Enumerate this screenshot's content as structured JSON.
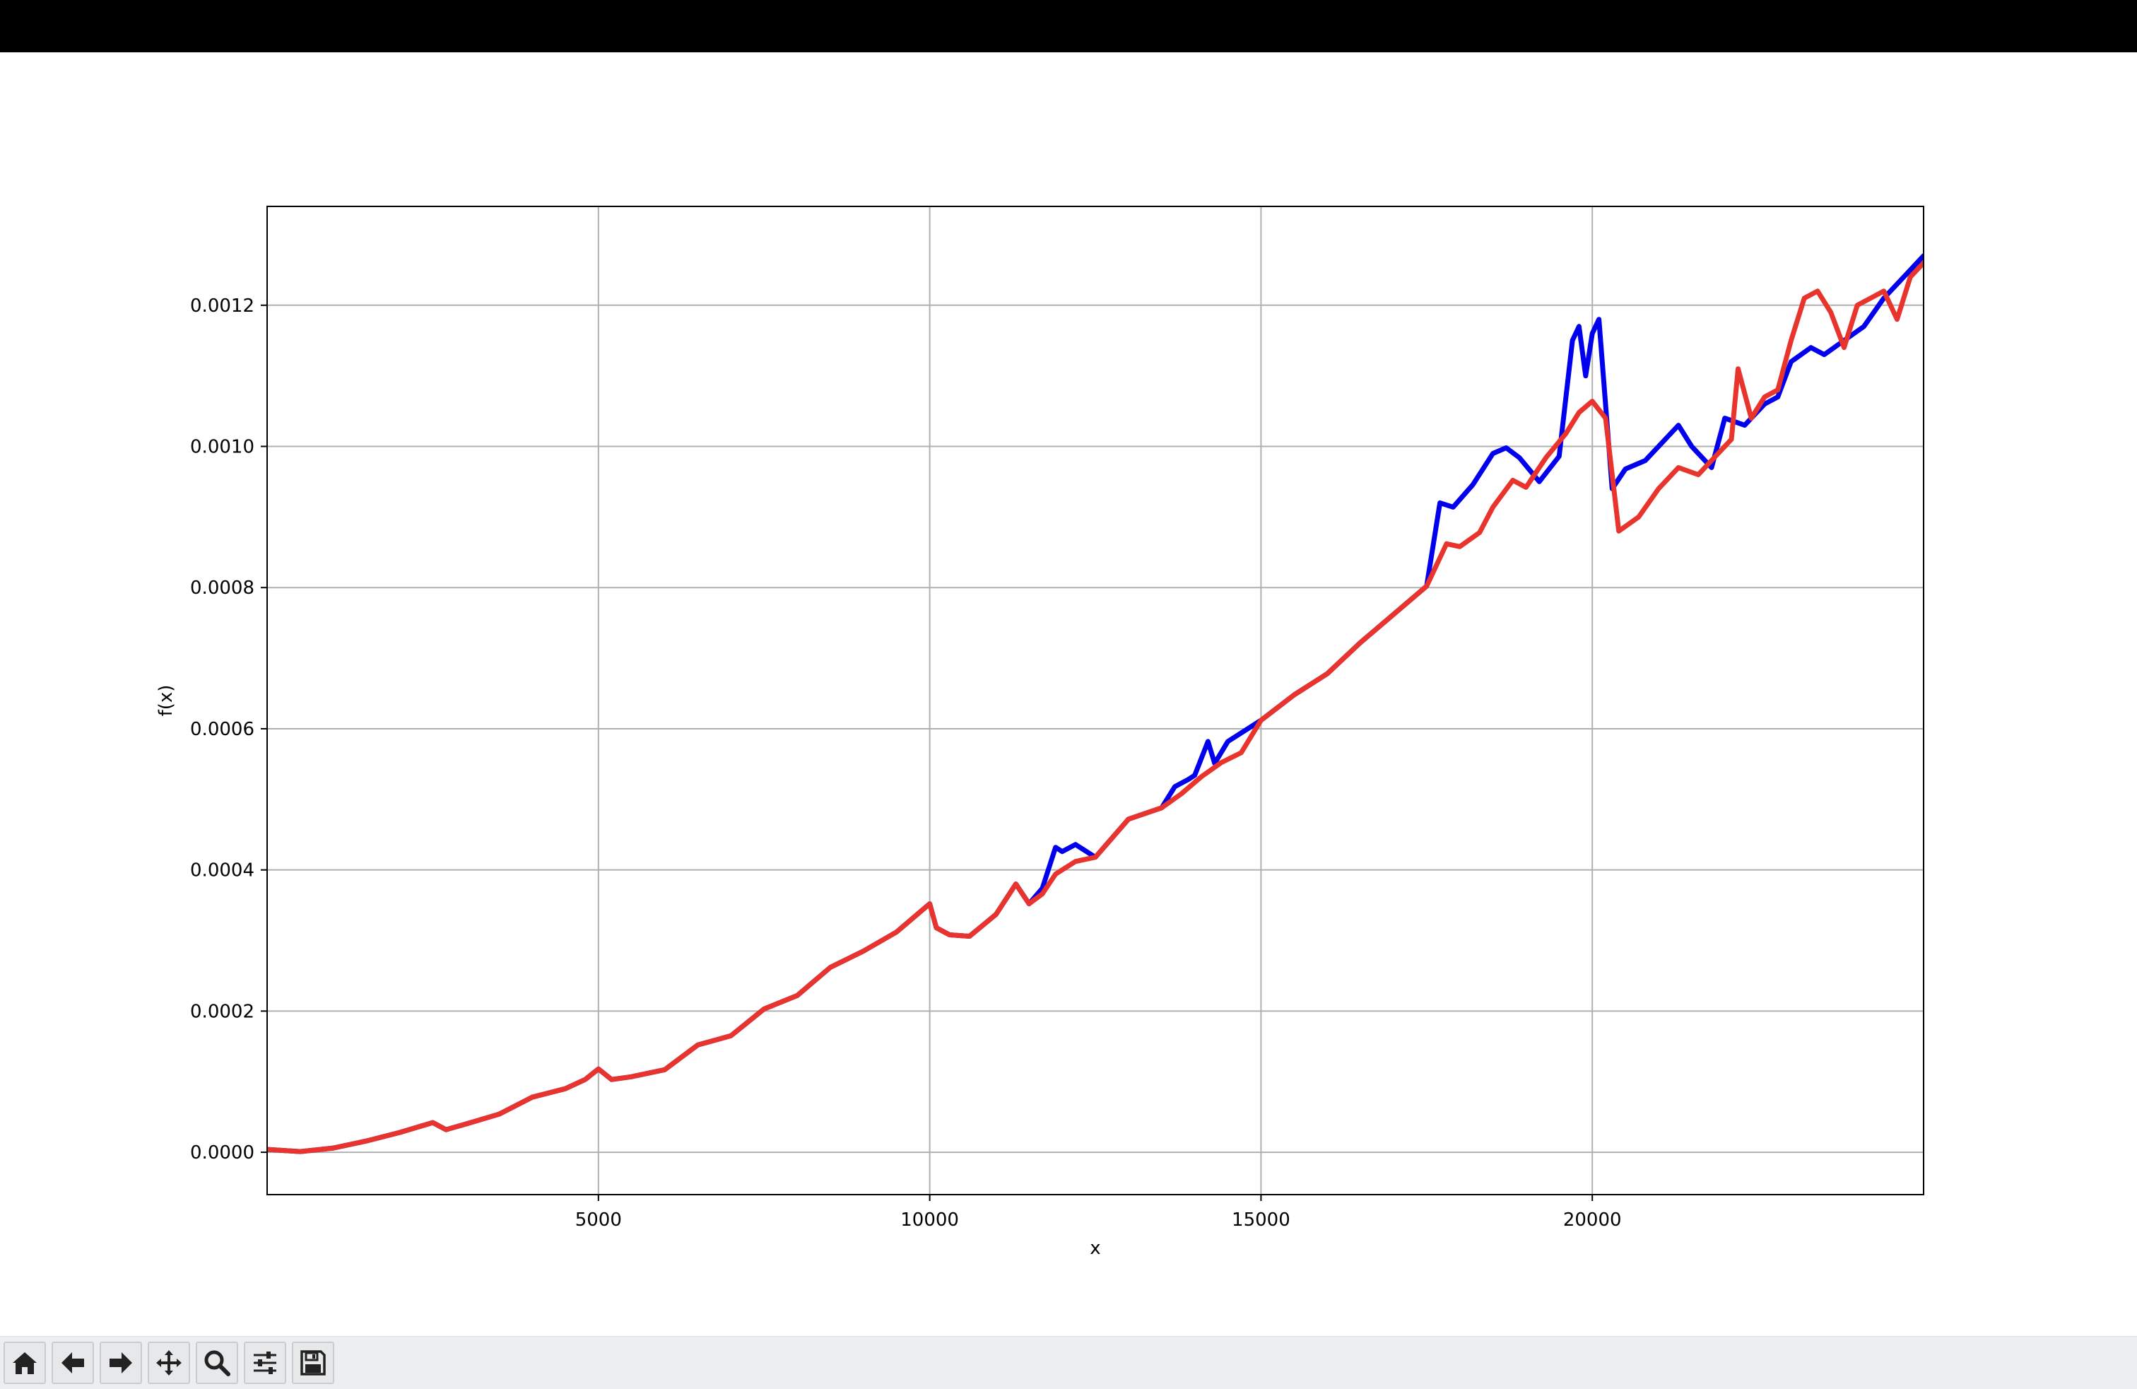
{
  "window": {
    "title_bar_color": "#000000"
  },
  "toolbar": {
    "buttons": [
      {
        "name": "home",
        "icon": "home-icon"
      },
      {
        "name": "back",
        "icon": "arrow-left-icon"
      },
      {
        "name": "forward",
        "icon": "arrow-right-icon"
      },
      {
        "name": "pan",
        "icon": "move-icon"
      },
      {
        "name": "zoom",
        "icon": "search-icon"
      },
      {
        "name": "configure-subplots",
        "icon": "sliders-icon"
      },
      {
        "name": "save",
        "icon": "floppy-disk-icon"
      }
    ]
  },
  "chart_data": {
    "type": "line",
    "title": "",
    "xlabel": "x",
    "ylabel": "f(x)",
    "xlim": [
      0,
      25000
    ],
    "ylim": [
      -6e-05,
      0.00134
    ],
    "xticks": [
      5000,
      10000,
      15000,
      20000
    ],
    "xtick_labels": [
      "5000",
      "10000",
      "15000",
      "20000"
    ],
    "yticks": [
      0,
      0.0002,
      0.0004,
      0.0006,
      0.0008,
      0.001,
      0.0012
    ],
    "ytick_labels": [
      "0.0000",
      "0.0002",
      "0.0004",
      "0.0006",
      "0.0008",
      "0.0010",
      "0.0012"
    ],
    "grid": true,
    "legend": "none",
    "series": [
      {
        "color": "#0000ee",
        "points": [
          [
            0,
            4e-06
          ],
          [
            500,
            1e-06
          ],
          [
            1000,
            6e-06
          ],
          [
            1500,
            1.6e-05
          ],
          [
            2000,
            2.8e-05
          ],
          [
            2500,
            4.2e-05
          ],
          [
            2700,
            3.2e-05
          ],
          [
            3000,
            4e-05
          ],
          [
            3500,
            5.4e-05
          ],
          [
            4000,
            7.8e-05
          ],
          [
            4500,
            9e-05
          ],
          [
            4800,
            0.000103
          ],
          [
            5000,
            0.000118
          ],
          [
            5200,
            0.000103
          ],
          [
            5500,
            0.000107
          ],
          [
            6000,
            0.000117
          ],
          [
            6500,
            0.000152
          ],
          [
            7000,
            0.000165
          ],
          [
            7500,
            0.000203
          ],
          [
            8000,
            0.000222
          ],
          [
            8500,
            0.000262
          ],
          [
            9000,
            0.000285
          ],
          [
            9500,
            0.000312
          ],
          [
            10000,
            0.000352
          ],
          [
            10100,
            0.000318
          ],
          [
            10300,
            0.000308
          ],
          [
            10600,
            0.000306
          ],
          [
            11000,
            0.000337
          ],
          [
            11300,
            0.00038
          ],
          [
            11500,
            0.000352
          ],
          [
            11700,
            0.000374
          ],
          [
            11900,
            0.000432
          ],
          [
            12000,
            0.000426
          ],
          [
            12200,
            0.000436
          ],
          [
            12500,
            0.000418
          ],
          [
            13000,
            0.000472
          ],
          [
            13500,
            0.000488
          ],
          [
            13700,
            0.000518
          ],
          [
            13900,
            0.000528
          ],
          [
            14000,
            0.000534
          ],
          [
            14200,
            0.000582
          ],
          [
            14300,
            0.000551
          ],
          [
            14500,
            0.000582
          ],
          [
            15000,
            0.000612
          ],
          [
            15500,
            0.000648
          ],
          [
            16000,
            0.000678
          ],
          [
            16500,
            0.000722
          ],
          [
            17000,
            0.000762
          ],
          [
            17500,
            0.000802
          ],
          [
            17700,
            0.00092
          ],
          [
            17900,
            0.000914
          ],
          [
            18200,
            0.000946
          ],
          [
            18500,
            0.00099
          ],
          [
            18700,
            0.000998
          ],
          [
            18900,
            0.000984
          ],
          [
            19200,
            0.00095
          ],
          [
            19500,
            0.000986
          ],
          [
            19700,
            0.00115
          ],
          [
            19800,
            0.00117
          ],
          [
            19900,
            0.0011
          ],
          [
            20000,
            0.00116
          ],
          [
            20100,
            0.00118
          ],
          [
            20300,
            0.00094
          ],
          [
            20500,
            0.000968
          ],
          [
            20800,
            0.00098
          ],
          [
            21000,
            0.001
          ],
          [
            21300,
            0.00103
          ],
          [
            21500,
            0.001
          ],
          [
            21800,
            0.00097
          ],
          [
            22000,
            0.00104
          ],
          [
            22300,
            0.00103
          ],
          [
            22600,
            0.00106
          ],
          [
            22800,
            0.00107
          ],
          [
            23000,
            0.00112
          ],
          [
            23300,
            0.00114
          ],
          [
            23500,
            0.00113
          ],
          [
            23800,
            0.00115
          ],
          [
            24100,
            0.00117
          ],
          [
            24400,
            0.00121
          ],
          [
            24700,
            0.00124
          ],
          [
            25000,
            0.00127
          ]
        ]
      },
      {
        "color": "#e8342c",
        "points": [
          [
            0,
            4e-06
          ],
          [
            500,
            1e-06
          ],
          [
            1000,
            6e-06
          ],
          [
            1500,
            1.6e-05
          ],
          [
            2000,
            2.8e-05
          ],
          [
            2500,
            4.2e-05
          ],
          [
            2700,
            3.2e-05
          ],
          [
            3000,
            4e-05
          ],
          [
            3500,
            5.4e-05
          ],
          [
            4000,
            7.8e-05
          ],
          [
            4500,
            9e-05
          ],
          [
            4800,
            0.000103
          ],
          [
            5000,
            0.000118
          ],
          [
            5200,
            0.000103
          ],
          [
            5500,
            0.000107
          ],
          [
            6000,
            0.000117
          ],
          [
            6500,
            0.000152
          ],
          [
            7000,
            0.000165
          ],
          [
            7500,
            0.000203
          ],
          [
            8000,
            0.000222
          ],
          [
            8500,
            0.000262
          ],
          [
            9000,
            0.000285
          ],
          [
            9500,
            0.000312
          ],
          [
            10000,
            0.000352
          ],
          [
            10100,
            0.000318
          ],
          [
            10300,
            0.000308
          ],
          [
            10600,
            0.000306
          ],
          [
            11000,
            0.000337
          ],
          [
            11300,
            0.00038
          ],
          [
            11500,
            0.000352
          ],
          [
            11700,
            0.000366
          ],
          [
            11900,
            0.000394
          ],
          [
            12200,
            0.000412
          ],
          [
            12500,
            0.000418
          ],
          [
            13000,
            0.000472
          ],
          [
            13500,
            0.000488
          ],
          [
            13800,
            0.000508
          ],
          [
            14100,
            0.000532
          ],
          [
            14400,
            0.000552
          ],
          [
            14700,
            0.000566
          ],
          [
            15000,
            0.000612
          ],
          [
            15500,
            0.000648
          ],
          [
            16000,
            0.000678
          ],
          [
            16500,
            0.000722
          ],
          [
            17000,
            0.000762
          ],
          [
            17500,
            0.000802
          ],
          [
            17800,
            0.000862
          ],
          [
            18000,
            0.000858
          ],
          [
            18300,
            0.000878
          ],
          [
            18500,
            0.000914
          ],
          [
            18800,
            0.000952
          ],
          [
            19000,
            0.000942
          ],
          [
            19300,
            0.000984
          ],
          [
            19600,
            0.001018
          ],
          [
            19800,
            0.001048
          ],
          [
            20000,
            0.001064
          ],
          [
            20200,
            0.00104
          ],
          [
            20400,
            0.00088
          ],
          [
            20700,
            0.0009
          ],
          [
            21000,
            0.00094
          ],
          [
            21300,
            0.00097
          ],
          [
            21600,
            0.00096
          ],
          [
            21900,
            0.00099
          ],
          [
            22100,
            0.00101
          ],
          [
            22200,
            0.00111
          ],
          [
            22400,
            0.00104
          ],
          [
            22600,
            0.00107
          ],
          [
            22800,
            0.00108
          ],
          [
            23000,
            0.00115
          ],
          [
            23200,
            0.00121
          ],
          [
            23400,
            0.00122
          ],
          [
            23600,
            0.00119
          ],
          [
            23800,
            0.00114
          ],
          [
            24000,
            0.0012
          ],
          [
            24200,
            0.00121
          ],
          [
            24400,
            0.00122
          ],
          [
            24600,
            0.00118
          ],
          [
            24800,
            0.00124
          ],
          [
            25000,
            0.00126
          ]
        ]
      }
    ]
  }
}
